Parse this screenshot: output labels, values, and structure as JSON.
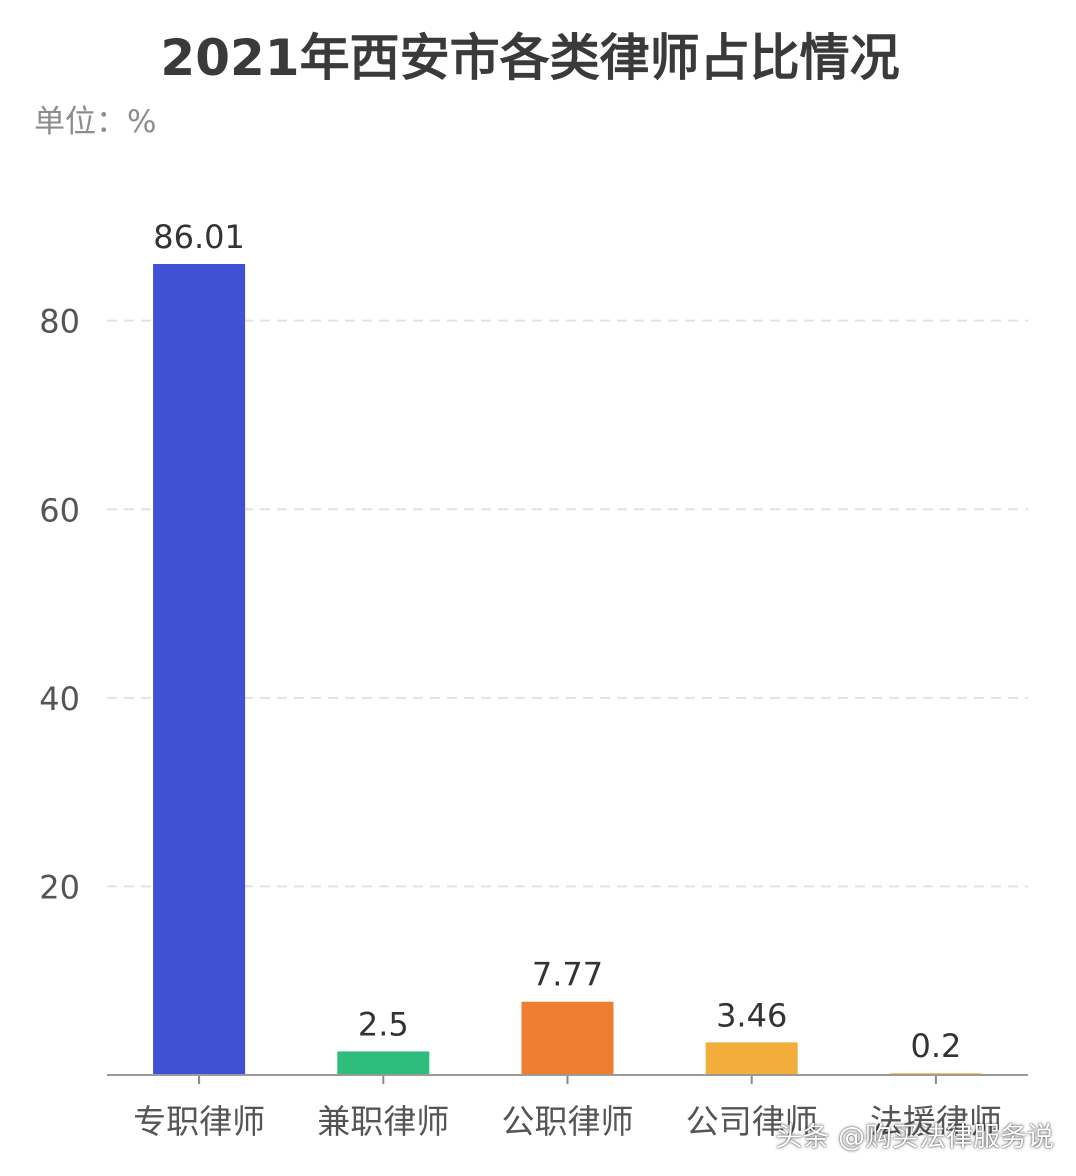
{
  "chart_data": {
    "type": "bar",
    "title": "2021年西安市各类律师占比情况",
    "unit_label": "单位：%",
    "categories": [
      "专职律师",
      "兼职律师",
      "公职律师",
      "公司律师",
      "法援律师"
    ],
    "values": [
      86.01,
      2.5,
      7.77,
      3.46,
      0.2
    ],
    "data_labels": [
      "86.01",
      "2.5",
      "7.77",
      "3.46",
      "0.2"
    ],
    "colors": [
      "#4051d6",
      "#2ebd7c",
      "#ee7d31",
      "#f3ad3a",
      "#f6cb5a"
    ],
    "ylim": [
      0,
      86.01
    ],
    "yticks": [
      20,
      40,
      60,
      80
    ],
    "grid": true,
    "legend": "none"
  },
  "watermark": "头条 @购买法律服务说"
}
